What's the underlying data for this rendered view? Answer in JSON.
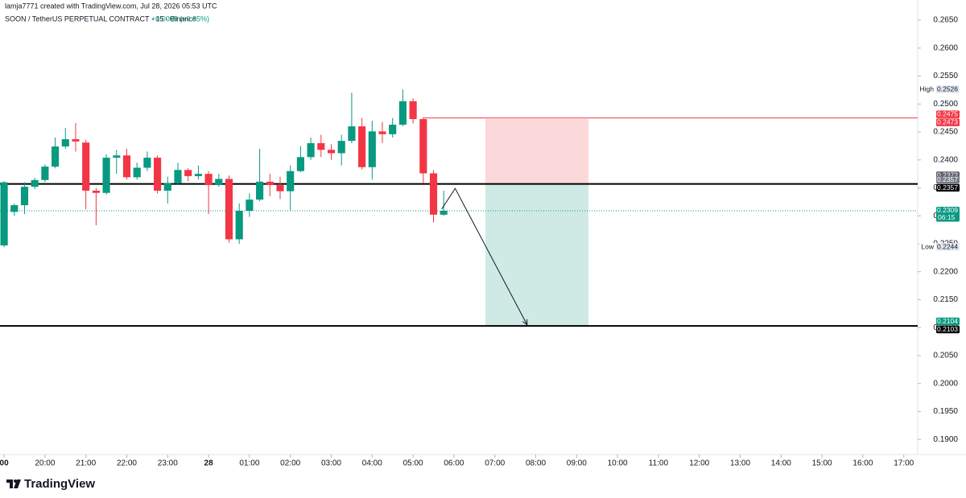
{
  "header": {
    "credit": "lamja7771 created with TradingView.com, Jul 28, 2026 05:53 UTC"
  },
  "chart_data": {
    "type": "candlestick",
    "title": "SOON / TetherUS PERPETUAL CONTRACT · 15 · Binance",
    "change": "+0.0008 (+0.35%)",
    "x": [
      19,
      19.25,
      19.5,
      19.75,
      20,
      20.25,
      20.5,
      20.75,
      21,
      21.25,
      21.5,
      21.75,
      22,
      22.25,
      22.5,
      22.75,
      23,
      23.25,
      23.5,
      23.75,
      24,
      24.25,
      24.5,
      24.75,
      25,
      25.25,
      25.5,
      25.75,
      26,
      26.25,
      26.5,
      26.75,
      27,
      27.25,
      27.5,
      27.75,
      28,
      28.25,
      28.5,
      28.75,
      29,
      29.25,
      29.5,
      29.75
    ],
    "open": [
      0.2247,
      0.2307,
      0.2319,
      0.2352,
      0.2364,
      0.2388,
      0.2424,
      0.2437,
      0.2431,
      0.2345,
      0.2341,
      0.2404,
      0.2408,
      0.2369,
      0.2386,
      0.2404,
      0.2345,
      0.2358,
      0.2382,
      0.2371,
      0.2375,
      0.2355,
      0.2366,
      0.2258,
      0.2309,
      0.2329,
      0.2361,
      0.2355,
      0.2344,
      0.238,
      0.2405,
      0.243,
      0.2418,
      0.2412,
      0.2434,
      0.246,
      0.2387,
      0.2451,
      0.2446,
      0.2463,
      0.2505,
      0.2473,
      0.2376,
      0.2302
    ],
    "high": [
      0.2362,
      0.2322,
      0.236,
      0.2368,
      0.2392,
      0.244,
      0.2457,
      0.2466,
      0.2436,
      0.235,
      0.241,
      0.2418,
      0.242,
      0.2395,
      0.2415,
      0.2408,
      0.237,
      0.2395,
      0.2385,
      0.239,
      0.238,
      0.2375,
      0.2372,
      0.2322,
      0.234,
      0.242,
      0.2375,
      0.237,
      0.239,
      0.2425,
      0.244,
      0.2445,
      0.2428,
      0.2445,
      0.252,
      0.2475,
      0.247,
      0.2468,
      0.2475,
      0.2526,
      0.251,
      0.2476,
      0.2382,
      0.2345
    ],
    "low": [
      0.2244,
      0.23,
      0.2303,
      0.2348,
      0.236,
      0.2385,
      0.242,
      0.2415,
      0.2312,
      0.2283,
      0.2338,
      0.2375,
      0.2365,
      0.2365,
      0.238,
      0.234,
      0.2322,
      0.2355,
      0.2362,
      0.2365,
      0.2303,
      0.2352,
      0.2252,
      0.225,
      0.2298,
      0.2326,
      0.2335,
      0.233,
      0.231,
      0.2378,
      0.24,
      0.2405,
      0.24,
      0.239,
      0.243,
      0.2383,
      0.2365,
      0.243,
      0.244,
      0.246,
      0.2465,
      0.2358,
      0.2288,
      0.23
    ],
    "close": [
      0.236,
      0.2319,
      0.2352,
      0.2364,
      0.2388,
      0.2424,
      0.2437,
      0.2433,
      0.2345,
      0.2341,
      0.2404,
      0.2408,
      0.2369,
      0.2386,
      0.2404,
      0.2345,
      0.2358,
      0.2382,
      0.2371,
      0.2375,
      0.2355,
      0.2366,
      0.2258,
      0.2309,
      0.2329,
      0.2361,
      0.2355,
      0.2344,
      0.238,
      0.2405,
      0.243,
      0.2418,
      0.2412,
      0.2434,
      0.246,
      0.2387,
      0.2451,
      0.2446,
      0.2463,
      0.2505,
      0.2473,
      0.2376,
      0.2302,
      0.2309
    ],
    "up_color": "#089981",
    "down_color": "#f23645",
    "xlim": [
      18.9,
      41.34
    ],
    "xticks": [
      {
        "value": 19,
        "label": "00"
      },
      {
        "value": 20,
        "label": "20:00"
      },
      {
        "value": 21,
        "label": "21:00"
      },
      {
        "value": 22,
        "label": "22:00"
      },
      {
        "value": 23,
        "label": "23:00"
      },
      {
        "value": 24,
        "label": "28"
      },
      {
        "value": 25,
        "label": "01:00"
      },
      {
        "value": 26,
        "label": "02:00"
      },
      {
        "value": 27,
        "label": "03:00"
      },
      {
        "value": 28,
        "label": "04:00"
      },
      {
        "value": 29,
        "label": "05:00"
      },
      {
        "value": 30,
        "label": "06:00"
      },
      {
        "value": 31,
        "label": "07:00"
      },
      {
        "value": 32,
        "label": "08:00"
      },
      {
        "value": 33,
        "label": "09:00"
      },
      {
        "value": 34,
        "label": "10:00"
      },
      {
        "value": 35,
        "label": "11:00"
      },
      {
        "value": 36,
        "label": "12:00"
      },
      {
        "value": 37,
        "label": "13:00"
      },
      {
        "value": 38,
        "label": "14:00"
      },
      {
        "value": 39,
        "label": "15:00"
      },
      {
        "value": 40,
        "label": "16:00"
      },
      {
        "value": 41,
        "label": "17:00"
      }
    ],
    "ylim": [
      0.1873,
      0.2686
    ],
    "yticks": [
      {
        "value": 0.265,
        "label": "0.2650"
      },
      {
        "value": 0.26,
        "label": "0.2600"
      },
      {
        "value": 0.255,
        "label": "0.2550"
      },
      {
        "value": 0.25,
        "label": "0.2500"
      },
      {
        "value": 0.245,
        "label": "0.2450"
      },
      {
        "value": 0.24,
        "label": "0.2400"
      },
      {
        "value": 0.235,
        "label": "0.2350"
      },
      {
        "value": 0.23,
        "label": "0.2300"
      },
      {
        "value": 0.225,
        "label": "0.2250"
      },
      {
        "value": 0.22,
        "label": "0.2200"
      },
      {
        "value": 0.215,
        "label": "0.2150"
      },
      {
        "value": 0.21,
        "label": "0.2100"
      },
      {
        "value": 0.205,
        "label": "0.2050"
      },
      {
        "value": 0.2,
        "label": "0.2000"
      },
      {
        "value": 0.195,
        "label": "0.1950"
      },
      {
        "value": 0.19,
        "label": "0.1900"
      }
    ],
    "horizontal_lines": [
      {
        "value": 0.2357,
        "color": "#000000",
        "width": 2
      },
      {
        "value": 0.2103,
        "color": "#000000",
        "width": 2
      },
      {
        "value": 0.2475,
        "color": "#f23645",
        "width": 1,
        "from": 29.25
      }
    ],
    "position": {
      "from": 30.77,
      "to": 33.29,
      "stop": 0.2473,
      "entry": 0.2357,
      "target": 0.2104,
      "stop_color": "#fbd8da",
      "target_color": "#cfeae5"
    },
    "arrow": {
      "x": [
        29.7,
        30.03,
        31.79
      ],
      "y": [
        0.2312,
        0.2349,
        0.2105
      ],
      "color": "#131722"
    },
    "price_labels": [
      {
        "value": 0.2526,
        "label": "0.2526",
        "tag": "High",
        "bg": "#e3e8f0",
        "fg": "#131722"
      },
      {
        "value": 0.2475,
        "label": "0.2475",
        "bg": "#f23645",
        "fg": "#ffffff"
      },
      {
        "value": 0.2473,
        "label": "0.2473",
        "bg": "#f23645",
        "fg": "#ffffff"
      },
      {
        "value": 0.2372,
        "label": "0.2372",
        "bg": "#5d606b",
        "fg": "#ffffff"
      },
      {
        "value": 0.2357,
        "label": "0.2357",
        "bg": "#787b86",
        "fg": "#ffffff"
      },
      {
        "value": 0.2357,
        "label": "0.2357",
        "bg": "#000000",
        "fg": "#ffffff"
      },
      {
        "value": 0.2309,
        "label": "0.2309",
        "countdown": "06:15",
        "bg": "#089981",
        "fg": "#ffffff"
      },
      {
        "value": 0.2244,
        "label": "0.2244",
        "tag": "Low",
        "bg": "#e3e8f0",
        "fg": "#131722"
      },
      {
        "value": 0.2104,
        "label": "0.2104",
        "bg": "#089981",
        "fg": "#ffffff"
      },
      {
        "value": 0.2103,
        "label": "0.2103",
        "bg": "#000000",
        "fg": "#ffffff"
      }
    ]
  },
  "footer": {
    "brand": "TradingView"
  }
}
